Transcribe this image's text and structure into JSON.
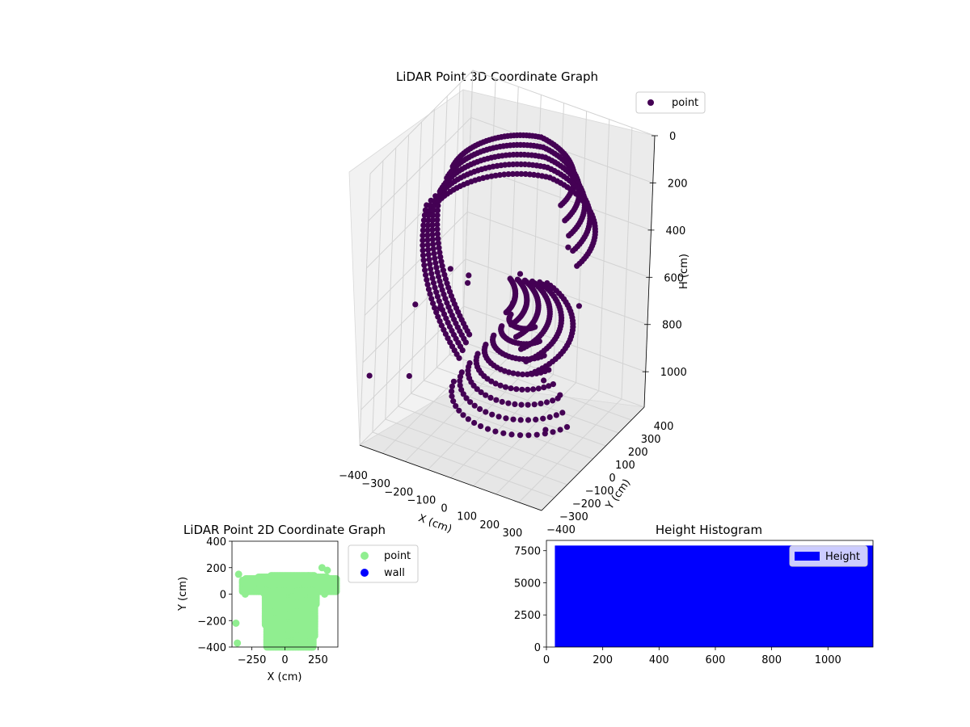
{
  "chart_data": [
    {
      "type": "scatter",
      "title": "LiDAR Point 3D Coordinate Graph",
      "xlabel": "X (cm)",
      "ylabel": "Y (cm)",
      "zlabel": "H (cm)",
      "xlim": [
        -400,
        400
      ],
      "ylim": [
        -400,
        400
      ],
      "zlim": [
        1150,
        0
      ],
      "x_ticks": [
        "−400",
        "−300",
        "−200",
        "−100",
        "0",
        "100",
        "200",
        "300"
      ],
      "y_ticks": [
        "−400",
        "−300",
        "−200",
        "−100",
        "0",
        "100",
        "200",
        "300",
        "400"
      ],
      "z_ticks": [
        "0",
        "200",
        "400",
        "600",
        "800",
        "1000"
      ],
      "legend_position": "top-right",
      "grid": true,
      "series": [
        {
          "name": "point",
          "color": "#440154",
          "points": [
            [
              -150,
              -260,
              560
            ],
            [
              0,
              100,
              560
            ],
            [
              100,
              -150,
              560
            ],
            [
              -300,
              -180,
              640
            ],
            [
              -360,
              350,
              860
            ],
            [
              -380,
              -380,
              860
            ],
            [
              -250,
              -300,
              860
            ],
            [
              200,
              -50,
              860
            ],
            [
              300,
              -100,
              860
            ],
            [
              350,
              -300,
              880
            ],
            [
              -330,
              150,
              680
            ],
            [
              -250,
              150,
              680
            ],
            [
              250,
              120,
              620
            ],
            [
              150,
              -230,
              450
            ],
            [
              150,
              200,
              450
            ]
          ],
          "approximate_cloud_description": "dense helical band of points around the scanner"
        }
      ]
    },
    {
      "type": "scatter",
      "title": "LiDAR Point 2D Coordinate Graph",
      "xlabel": "X (cm)",
      "ylabel": "Y (cm)",
      "xlim": [
        -400,
        400
      ],
      "ylim": [
        -400,
        400
      ],
      "x_ticks": [
        "−250",
        "0",
        "250"
      ],
      "y_ticks": [
        "400",
        "200",
        "0",
        "−200",
        "−400"
      ],
      "legend_position": "outside-right",
      "series": [
        {
          "name": "point",
          "color": "#90ee90",
          "points": [
            [
              -370,
              -220
            ],
            [
              -360,
              -370
            ],
            [
              -350,
              150
            ],
            [
              -320,
              90
            ],
            [
              280,
              200
            ],
            [
              320,
              180
            ],
            [
              370,
              110
            ],
            [
              380,
              40
            ],
            [
              -300,
              0
            ],
            [
              300,
              0
            ]
          ]
        },
        {
          "name": "wall",
          "color": "#0000ff",
          "points": []
        }
      ]
    },
    {
      "type": "bar",
      "title": "Height Histogram",
      "xlim": [
        0,
        1160
      ],
      "ylim": [
        0,
        8300
      ],
      "x_ticks": [
        "0",
        "200",
        "400",
        "600",
        "800",
        "1000"
      ],
      "y_ticks": [
        "0",
        "2500",
        "5000",
        "7500"
      ],
      "legend_position": "top-right",
      "series": [
        {
          "name": "Height",
          "color": "#0000ff",
          "bin_start": 30,
          "bin_end": 1160,
          "value": 7900
        }
      ]
    }
  ]
}
